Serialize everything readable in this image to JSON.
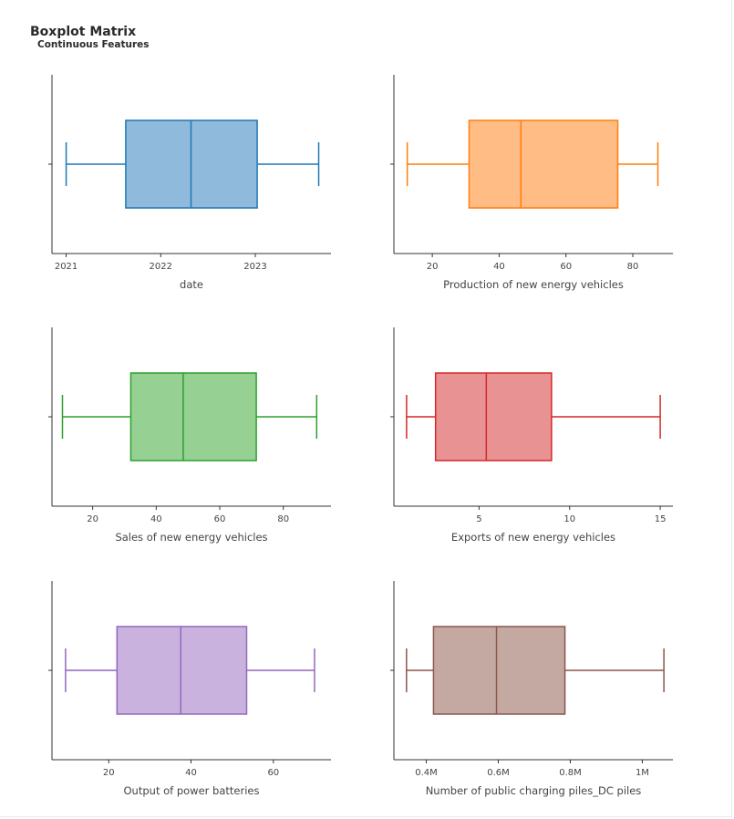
{
  "header": {
    "title": "Boxplot Matrix",
    "subtitle": "Continuous Features"
  },
  "chart_data": [
    {
      "type": "box",
      "xlabel": "date",
      "xlim": [
        2020.85,
        2023.8
      ],
      "ticks": [
        2021,
        2022,
        2023
      ],
      "tick_labels": [
        "2021",
        "2022",
        "2023"
      ],
      "box": {
        "min": 2021.0,
        "q1": 2021.63,
        "median": 2022.32,
        "q3": 2023.02,
        "max": 2023.67
      },
      "stroke": "#1f77b4",
      "fill": "#8fbadb"
    },
    {
      "type": "box",
      "xlabel": "Production of new energy vehicles",
      "xlim": [
        8.5,
        92
      ],
      "ticks": [
        20,
        40,
        60,
        80
      ],
      "tick_labels": [
        "20",
        "40",
        "60",
        "80"
      ],
      "box": {
        "min": 12.5,
        "q1": 31.0,
        "median": 46.5,
        "q3": 75.5,
        "max": 87.5
      },
      "stroke": "#ff7f0e",
      "fill": "#ffbc85"
    },
    {
      "type": "box",
      "xlabel": "Sales of new energy vehicles",
      "xlim": [
        7.2,
        95
      ],
      "ticks": [
        20,
        40,
        60,
        80
      ],
      "tick_labels": [
        "20",
        "40",
        "60",
        "80"
      ],
      "box": {
        "min": 10.5,
        "q1": 32.0,
        "median": 48.5,
        "q3": 71.5,
        "max": 90.5
      },
      "stroke": "#2ca02c",
      "fill": "#96d092"
    },
    {
      "type": "box",
      "xlabel": "Exports of new energy vehicles",
      "xlim": [
        0.3,
        15.7
      ],
      "ticks": [
        5,
        10,
        15
      ],
      "tick_labels": [
        "5",
        "10",
        "15"
      ],
      "box": {
        "min": 1.0,
        "q1": 2.6,
        "median": 5.4,
        "q3": 9.0,
        "max": 15.0
      },
      "stroke": "#d62728",
      "fill": "#e99293"
    },
    {
      "type": "box",
      "xlabel": "Output of power batteries",
      "xlim": [
        6.2,
        74
      ],
      "ticks": [
        20,
        40,
        60
      ],
      "tick_labels": [
        "20",
        "40",
        "60"
      ],
      "box": {
        "min": 9.5,
        "q1": 22.0,
        "median": 37.5,
        "q3": 53.5,
        "max": 70.0
      },
      "stroke": "#9467bd",
      "fill": "#c9b3de"
    },
    {
      "type": "box",
      "xlabel": "Number of public charging piles_DC piles",
      "xlim": [
        0.31,
        1.085
      ],
      "ticks": [
        0.4,
        0.6,
        0.8,
        1.0
      ],
      "tick_labels": [
        "0.4M",
        "0.6M",
        "0.8M",
        "1M"
      ],
      "box": {
        "min": 0.345,
        "q1": 0.42,
        "median": 0.595,
        "q3": 0.785,
        "max": 1.06
      },
      "stroke": "#8c564b",
      "fill": "#c4a9a3"
    }
  ]
}
